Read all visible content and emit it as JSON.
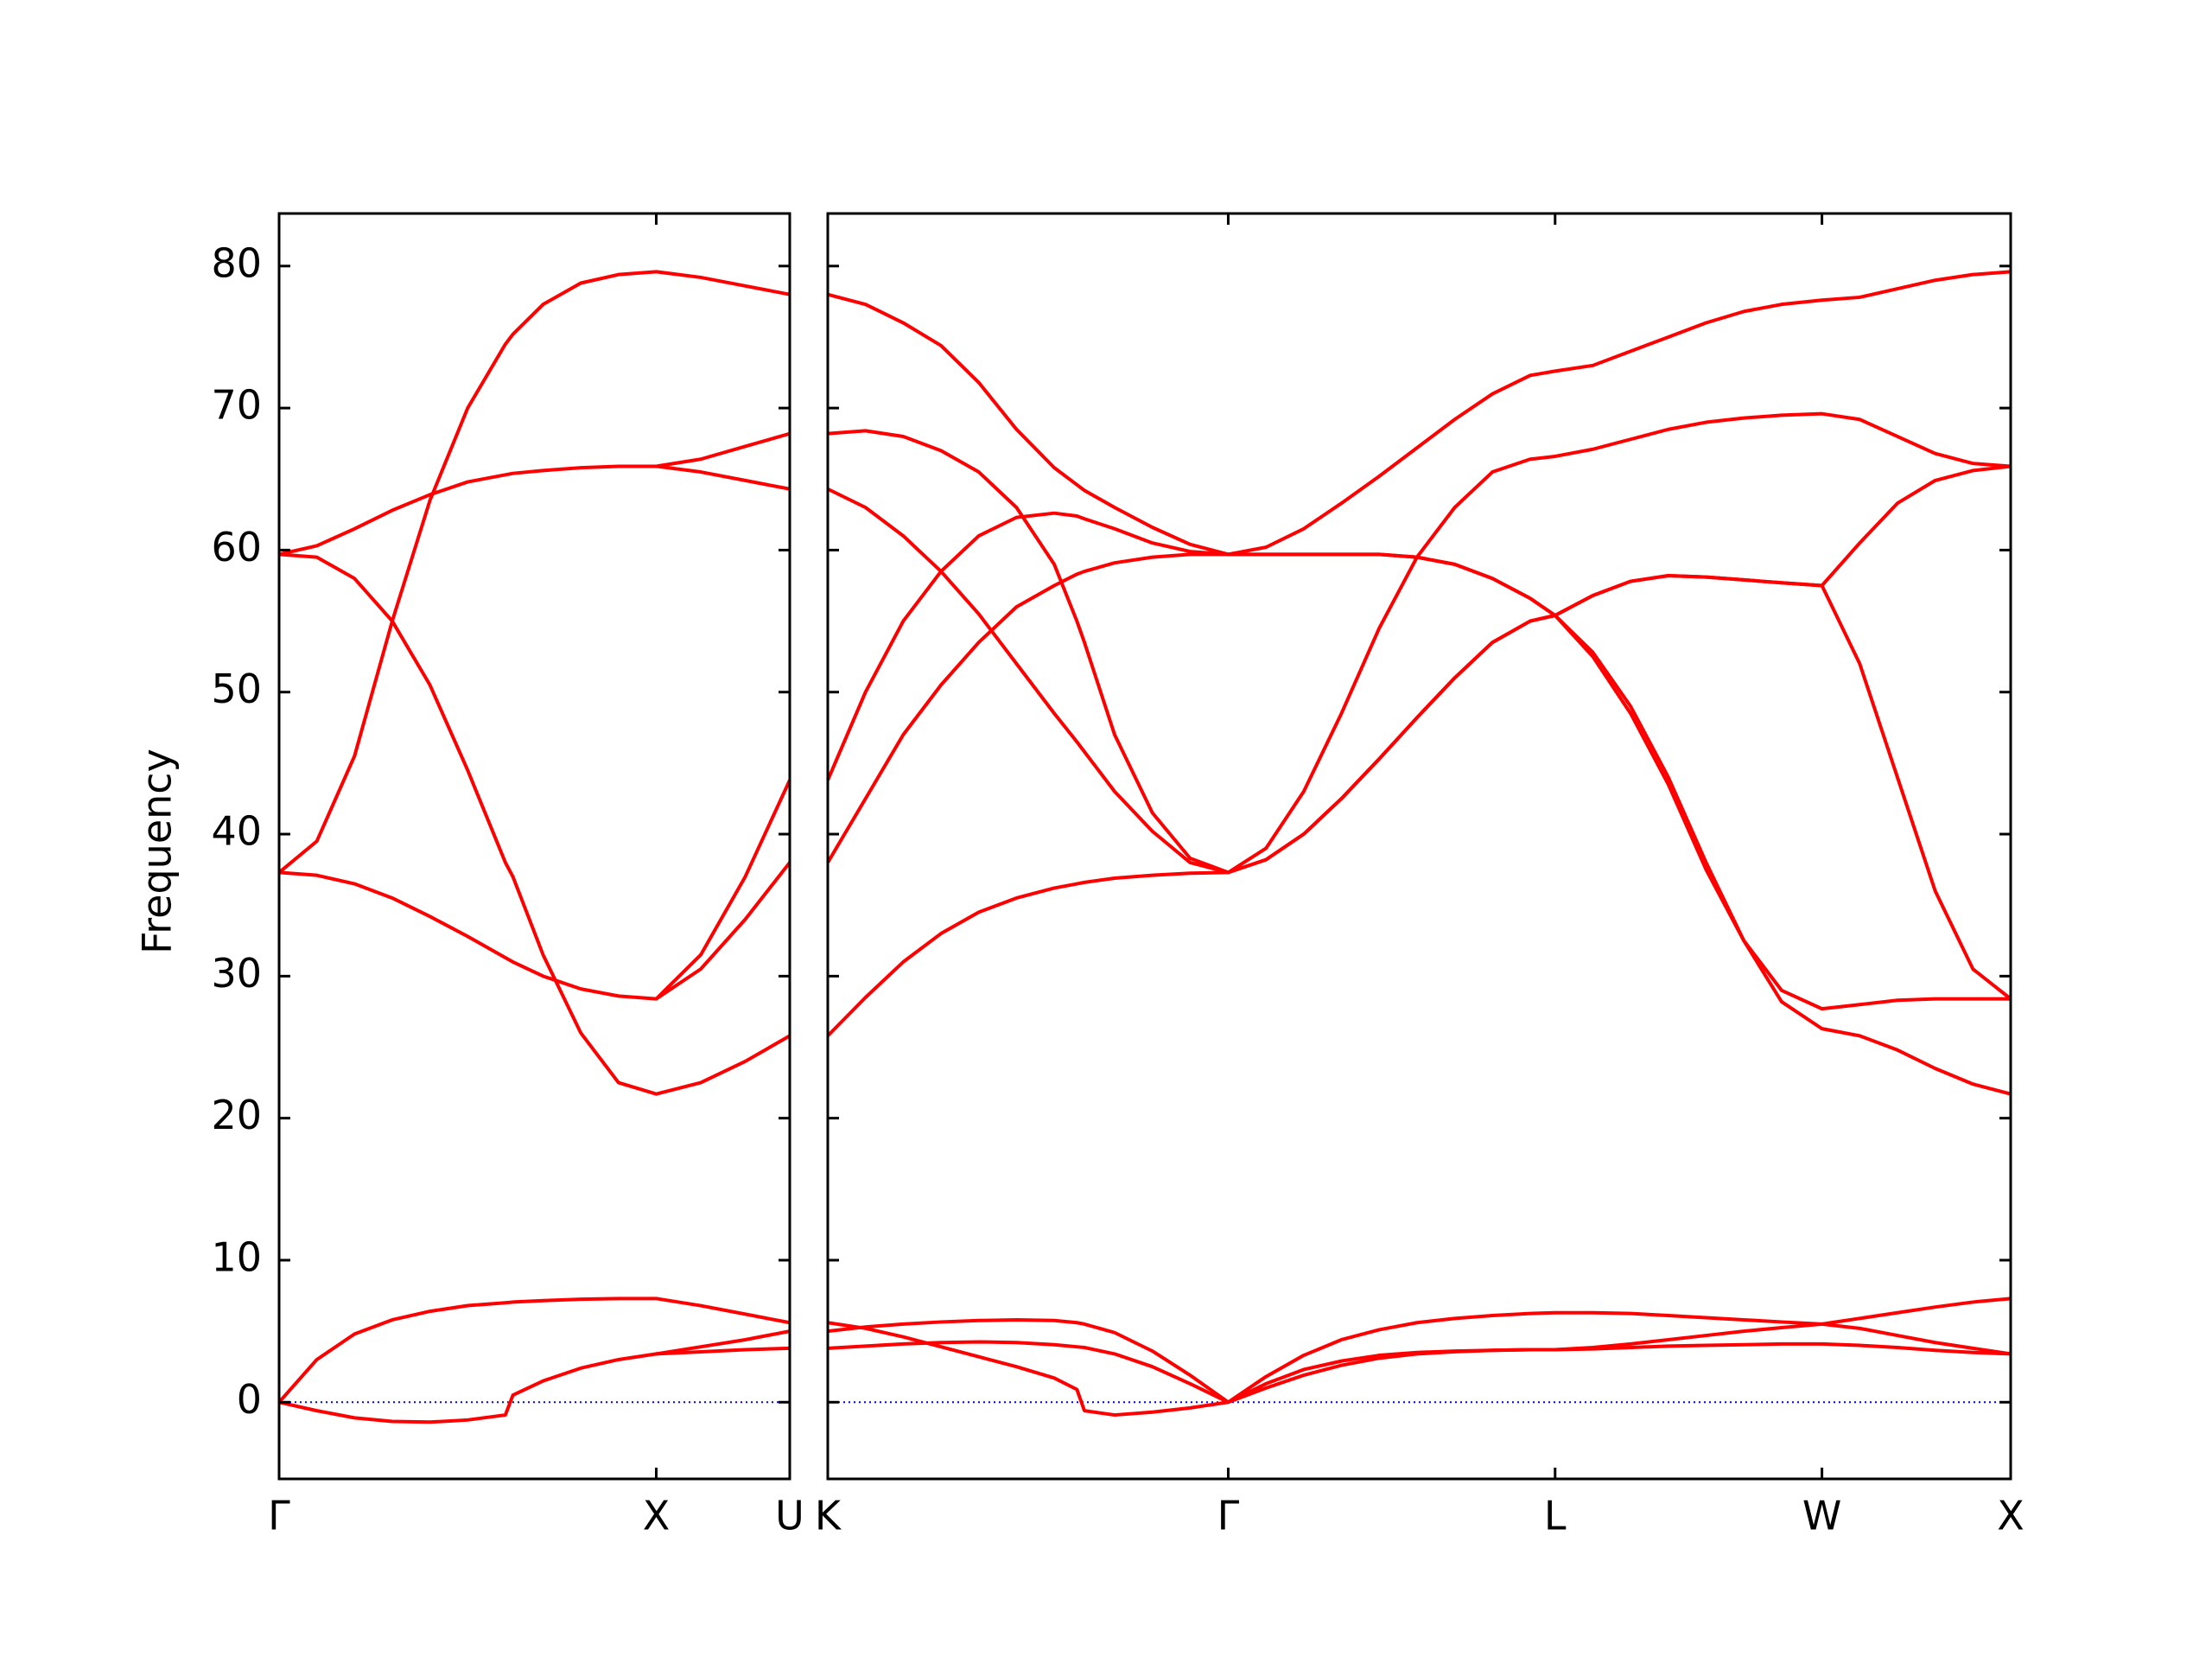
{
  "chart_data": [
    {
      "type": "line",
      "ylabel": "Frequency",
      "color": "#ff0000",
      "x": [
        0,
        0.1,
        0.2,
        0.3,
        0.4,
        0.5,
        0.6,
        0.62,
        0.7,
        0.8,
        0.9,
        1.0,
        1.118,
        1.236,
        1.354
      ],
      "series": [
        {
          "values": [
            0,
            3.0,
            4.8,
            5.8,
            6.4,
            6.8,
            7.0,
            7.05,
            7.15,
            7.25,
            7.3,
            7.3,
            6.8,
            6.2,
            5.6
          ]
        },
        {
          "values": [
            0,
            -0.6,
            -1.1,
            -1.35,
            -1.4,
            -1.25,
            -0.9,
            0.5,
            1.5,
            2.4,
            3.0,
            3.4,
            3.9,
            4.4,
            5.0
          ]
        },
        {
          "values": [
            null,
            null,
            null,
            null,
            null,
            null,
            null,
            null,
            null,
            null,
            null,
            3.4,
            3.55,
            3.7,
            3.8
          ]
        },
        {
          "values": [
            37.3,
            39.5,
            45.5,
            55,
            63.5,
            70,
            74.5,
            75.2,
            77.3,
            78.8,
            79.4,
            79.6,
            79.2,
            78.6,
            78.0
          ]
        },
        {
          "values": [
            59.7,
            60.3,
            61.5,
            62.8,
            63.9,
            64.8,
            65.3,
            65.4,
            65.6,
            65.8,
            65.9,
            65.9,
            66.4,
            67.3,
            68.2
          ]
        },
        {
          "values": [
            null,
            null,
            null,
            null,
            null,
            null,
            null,
            null,
            null,
            null,
            null,
            65.9,
            65.5,
            64.9,
            64.3
          ]
        },
        {
          "values": [
            59.7,
            59.5,
            58,
            55,
            50.5,
            44.5,
            38,
            37,
            31.5,
            26,
            22.5,
            21.7,
            22.5,
            24,
            25.8
          ]
        },
        {
          "values": [
            37.3,
            37.1,
            36.5,
            35.5,
            34.2,
            32.8,
            31.3,
            31.0,
            30.0,
            29.1,
            28.6,
            28.4,
            30.5,
            34.0,
            38.0
          ]
        },
        {
          "values": [
            null,
            null,
            null,
            null,
            null,
            null,
            null,
            null,
            null,
            null,
            null,
            28.4,
            31.5,
            37,
            43.8
          ]
        }
      ],
      "xlim": [
        0,
        1.354
      ],
      "xticks": [
        {
          "value": 0,
          "label": "Γ"
        },
        {
          "value": 1.0,
          "label": "X"
        },
        {
          "value": 1.354,
          "label": "U"
        }
      ],
      "ylim": [
        -5.4,
        83.7
      ],
      "yticks": [
        0,
        10,
        20,
        30,
        40,
        50,
        60,
        70,
        80
      ],
      "ytick_labels": true,
      "hline": {
        "value": 0,
        "color": "#0000ff"
      }
    },
    {
      "type": "line",
      "color": "#ff0000",
      "x": [
        1.354,
        1.454,
        1.554,
        1.654,
        1.754,
        1.854,
        1.954,
        2.014,
        2.034,
        2.114,
        2.214,
        2.314,
        2.415,
        2.515,
        2.615,
        2.715,
        2.815,
        2.915,
        3.015,
        3.115,
        3.215,
        3.281,
        3.381,
        3.481,
        3.581,
        3.681,
        3.781,
        3.881,
        3.988,
        4.088,
        4.188,
        4.288,
        4.388,
        4.488
      ],
      "series": [
        {
          "values": [
            78,
            77.3,
            76,
            74.4,
            71.8,
            68.5,
            65.8,
            64.6,
            64.2,
            63,
            61.6,
            60.4,
            59.7,
            60.2,
            61.5,
            63.3,
            65.2,
            67.2,
            69.2,
            71,
            72.3,
            72.6,
            73,
            74,
            75,
            76,
            76.8,
            77.3,
            77.6,
            77.8,
            78.4,
            79,
            79.4,
            79.6
          ]
        },
        {
          "values": [
            68.2,
            68.4,
            68,
            67,
            65.5,
            63,
            59,
            55,
            53.5,
            47,
            41.5,
            38.3,
            37.3,
            39,
            43,
            48.5,
            54.5,
            59.5,
            63,
            65.5,
            66.4,
            66.6,
            67.1,
            67.8,
            68.5,
            69,
            69.3,
            69.5,
            69.6,
            69.2,
            68,
            66.8,
            66.1,
            65.9
          ]
        },
        {
          "values": [
            64.3,
            63,
            61,
            58.5,
            55.5,
            52,
            48.5,
            46.5,
            45.8,
            43,
            40.2,
            38,
            37.3,
            38.2,
            40,
            42.5,
            45.3,
            48.2,
            51,
            53.5,
            55,
            55.4,
            56.8,
            57.8,
            58.2,
            58.1,
            57.9,
            57.7,
            57.5,
            52,
            44,
            36,
            30.5,
            28.4
          ]
        },
        {
          "values": [
            43.8,
            50,
            55,
            58.5,
            61,
            62.3,
            62.6,
            62.4,
            62.2,
            61.5,
            60.5,
            59.9,
            59.7,
            59.7,
            59.7,
            59.7,
            59.7,
            59.5,
            59.0,
            58.0,
            56.6,
            55.4,
            52.5,
            48.5,
            43.5,
            37.5,
            32.5,
            29,
            27.7,
            28.0,
            28.3,
            28.4,
            28.4,
            28.4
          ]
        },
        {
          "values": [
            38,
            42.5,
            47,
            50.5,
            53.5,
            56,
            57.5,
            58.3,
            58.5,
            59.1,
            59.5,
            59.7,
            59.7,
            59.7,
            59.7,
            59.7,
            59.7,
            59.5,
            59.0,
            58.0,
            56.6,
            55.4,
            52.8,
            49,
            44,
            38,
            32.5,
            28.2,
            26.3,
            25.8,
            24.8,
            23.5,
            22.4,
            21.7
          ]
        },
        {
          "values": [
            25.8,
            28.5,
            31,
            33,
            34.5,
            35.5,
            36.2,
            36.5,
            36.6,
            36.9,
            37.1,
            37.25,
            37.3,
            38.2,
            40,
            42.5,
            45.3,
            48.2,
            51,
            53.5,
            55,
            55.4,
            56.8,
            57.8,
            58.2,
            58.1,
            57.9,
            57.7,
            57.5,
            60.5,
            63.3,
            64.9,
            65.6,
            65.9
          ]
        },
        {
          "values": [
            5.6,
            5.2,
            4.6,
            3.9,
            3.2,
            2.5,
            1.7,
            0.9,
            -0.6,
            -0.9,
            -0.7,
            -0.4,
            0,
            1.0,
            1.9,
            2.6,
            3.1,
            3.4,
            3.55,
            3.65,
            3.7,
            3.7,
            3.75,
            3.85,
            3.95,
            4.0,
            4.05,
            4.1,
            4.1,
            4.0,
            3.85,
            3.65,
            3.5,
            3.4
          ]
        },
        {
          "values": [
            5.0,
            5.3,
            5.5,
            5.65,
            5.75,
            5.8,
            5.75,
            5.6,
            5.5,
            4.9,
            3.6,
            1.9,
            0,
            1.8,
            3.3,
            4.4,
            5.1,
            5.6,
            5.9,
            6.1,
            6.25,
            6.3,
            6.3,
            6.25,
            6.1,
            5.95,
            5.8,
            5.65,
            5.5,
            5.2,
            4.7,
            4.2,
            3.8,
            3.4
          ]
        },
        {
          "values": [
            3.8,
            3.95,
            4.1,
            4.2,
            4.25,
            4.2,
            4.05,
            3.9,
            3.85,
            3.4,
            2.5,
            1.3,
            0,
            1.3,
            2.3,
            2.9,
            3.3,
            3.5,
            3.6,
            3.65,
            3.7,
            3.7,
            3.85,
            4.1,
            4.4,
            4.7,
            5.0,
            5.25,
            5.5,
            5.9,
            6.3,
            6.7,
            7.05,
            7.3
          ]
        }
      ],
      "xlim": [
        1.354,
        4.488
      ],
      "xticks": [
        {
          "value": 1.354,
          "label": "K"
        },
        {
          "value": 2.415,
          "label": "Γ"
        },
        {
          "value": 3.281,
          "label": "L"
        },
        {
          "value": 3.988,
          "label": "W"
        },
        {
          "value": 4.488,
          "label": "X"
        }
      ],
      "ylim": [
        -5.4,
        83.7
      ],
      "yticks": [
        0,
        10,
        20,
        30,
        40,
        50,
        60,
        70,
        80
      ],
      "ytick_labels": false,
      "hline": {
        "value": 0,
        "color": "#0000ff"
      }
    }
  ]
}
